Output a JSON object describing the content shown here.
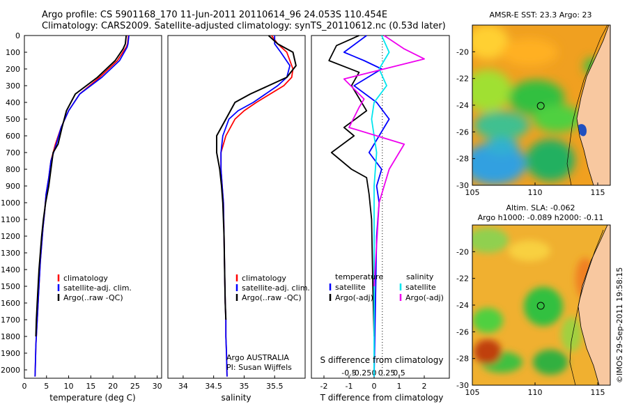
{
  "header": {
    "line1": "Argo profile: CS 5901168_170 11-Jun-2011 20110614_96 24.053S 110.454E",
    "line2": "Climatology: CARS2009. Satellite-adjusted climatology: synTS_20110612.nc (0.53d later)"
  },
  "colors": {
    "climatology": "#ff0000",
    "satellite": "#0000ff",
    "argo": "#000000",
    "sat_salinity": "#00e5ee",
    "argo_salinity_diff": "#ee00ee",
    "land": "#f8c8a0"
  },
  "chart_data": [
    {
      "type": "line",
      "id": "temperature",
      "xlabel": "temperature (deg C)",
      "ylabel": "",
      "xlim": [
        0,
        31
      ],
      "ylim": [
        2050,
        0
      ],
      "xticks": [
        0,
        5,
        10,
        15,
        20,
        25,
        30
      ],
      "yticks": [
        0,
        100,
        200,
        300,
        400,
        500,
        600,
        700,
        800,
        900,
        1000,
        1100,
        1200,
        1300,
        1400,
        1500,
        1600,
        1700,
        1800,
        1900,
        2000
      ],
      "legend": [
        "climatology",
        "satellite-adj. clim.",
        "Argo(..raw -QC)"
      ],
      "series": [
        {
          "name": "climatology",
          "x": [
            23.5,
            23.3,
            23.0,
            21.0,
            17.0,
            12.5,
            10.0,
            8.3,
            7.0,
            6.0,
            5.5,
            4.9,
            4.6,
            4.2,
            3.9,
            3.6,
            3.4,
            3.2,
            3.0,
            2.8,
            2.6,
            2.5,
            2.4
          ],
          "y": [
            0,
            50,
            70,
            150,
            250,
            350,
            450,
            550,
            650,
            750,
            850,
            950,
            1050,
            1150,
            1250,
            1350,
            1450,
            1550,
            1650,
            1750,
            1850,
            1950,
            2040
          ]
        },
        {
          "name": "satellite-adj. clim.",
          "x": [
            23.6,
            23.4,
            23.2,
            21.5,
            17.5,
            12.5,
            10.0,
            8.3,
            7.2,
            6.0,
            5.5,
            4.9,
            4.6,
            4.2,
            3.9,
            3.6,
            3.4,
            3.2,
            3.0,
            2.8,
            2.6,
            2.5,
            2.4
          ],
          "y": [
            0,
            50,
            70,
            150,
            250,
            350,
            450,
            550,
            650,
            750,
            850,
            950,
            1050,
            1150,
            1250,
            1350,
            1450,
            1550,
            1650,
            1750,
            1850,
            1950,
            2040
          ]
        },
        {
          "name": "Argo(..raw -QC)",
          "x": [
            23.0,
            22.8,
            22.3,
            20.5,
            16.5,
            11.5,
            9.5,
            8.5,
            7.6,
            6.5,
            6.0,
            5.5,
            4.8,
            4.3,
            3.9,
            3.6,
            3.3,
            3.1,
            2.9,
            2.7,
            2.6
          ],
          "y": [
            0,
            50,
            80,
            150,
            250,
            350,
            450,
            550,
            650,
            700,
            800,
            900,
            1000,
            1100,
            1200,
            1300,
            1400,
            1500,
            1600,
            1700,
            1800
          ]
        }
      ]
    },
    {
      "type": "line",
      "id": "salinity",
      "xlabel": "salinity",
      "ylabel": "",
      "xlim": [
        33.75,
        36.0
      ],
      "ylim": [
        2050,
        0
      ],
      "xticks": [
        34,
        34.5,
        35,
        35.5
      ],
      "xticklabels": [
        "34",
        "34.5",
        "35",
        "35.5"
      ],
      "legend": [
        "climatology",
        "satellite-adj. clim.",
        "Argo(..raw -QC)"
      ],
      "annotation": [
        "Argo AUSTRALIA",
        "PI: Susan Wijffels"
      ],
      "series": [
        {
          "name": "climatology",
          "x": [
            35.45,
            35.55,
            35.7,
            35.8,
            35.78,
            35.65,
            35.2,
            35.0,
            34.85,
            34.7,
            34.62,
            34.62,
            34.64,
            34.66,
            34.67,
            34.68,
            34.69,
            34.7,
            34.7,
            34.71,
            34.72
          ],
          "y": [
            0,
            50,
            100,
            200,
            250,
            300,
            400,
            450,
            500,
            600,
            700,
            800,
            900,
            1000,
            1200,
            1400,
            1600,
            1700,
            1800,
            1900,
            2040
          ]
        },
        {
          "name": "satellite-adj. clim.",
          "x": [
            35.5,
            35.5,
            35.6,
            35.75,
            35.7,
            35.55,
            35.15,
            34.9,
            34.75,
            34.65,
            34.62,
            34.62,
            34.64,
            34.66,
            34.67,
            34.68,
            34.69,
            34.7,
            34.7,
            34.71,
            34.72
          ],
          "y": [
            0,
            50,
            100,
            180,
            250,
            300,
            400,
            450,
            500,
            600,
            700,
            800,
            900,
            1000,
            1200,
            1400,
            1600,
            1700,
            1800,
            1900,
            2040
          ]
        },
        {
          "name": "Argo(..raw -QC)",
          "x": [
            35.4,
            35.55,
            35.8,
            35.85,
            35.7,
            35.4,
            35.1,
            34.85,
            34.7,
            34.55,
            34.55,
            34.6,
            34.63,
            34.65,
            34.67,
            34.68,
            34.69,
            34.7
          ],
          "y": [
            0,
            50,
            100,
            180,
            250,
            300,
            350,
            400,
            500,
            600,
            700,
            800,
            900,
            1000,
            1200,
            1400,
            1600,
            1700
          ]
        }
      ]
    },
    {
      "type": "line",
      "id": "differences",
      "xlabel": "T difference from climatology",
      "xlabel_top": "S difference from climatology",
      "xlim": [
        -2.5,
        3.0
      ],
      "ylim": [
        2050,
        0
      ],
      "xticks": [
        -2,
        -1,
        0,
        1,
        2
      ],
      "sticks": [
        -0.5,
        -0.25,
        0,
        0.25,
        0.5
      ],
      "sticklabels": [
        "-0.5",
        "-0.25",
        "0",
        "0.25",
        "0.5"
      ],
      "legend_groups": [
        {
          "title": "temperature",
          "items": [
            "satellite",
            "Argo(-adj)"
          ]
        },
        {
          "title": "salinity",
          "items": [
            "satellite",
            "Argo(-adj)"
          ]
        }
      ],
      "series": [
        {
          "name": "satellite",
          "group": "temperature",
          "x": [
            -0.3,
            -1.2,
            -0.4,
            0.3,
            -0.8,
            0.1,
            0.6,
            0.2,
            -0.2,
            0.3,
            0.1,
            0.2,
            0.1,
            0.0
          ],
          "y": [
            0,
            100,
            150,
            200,
            300,
            400,
            500,
            600,
            700,
            800,
            900,
            1000,
            1200,
            2040
          ]
        },
        {
          "name": "Argo(-adj)",
          "group": "temperature",
          "x": [
            -0.6,
            -1.5,
            -1.8,
            -0.6,
            -0.9,
            -0.3,
            -1.2,
            -0.8,
            -1.7,
            -0.9,
            -0.3,
            -0.2,
            -0.1,
            -0.05,
            0.0
          ],
          "y": [
            0,
            60,
            150,
            220,
            300,
            450,
            550,
            600,
            700,
            800,
            850,
            950,
            1100,
            1500,
            1800
          ]
        },
        {
          "name": "satellite",
          "group": "salinity",
          "x": [
            0.15,
            0.3,
            0.1,
            0.25,
            0.0,
            -0.05,
            0.05,
            0.0,
            0.0
          ],
          "y": [
            0,
            100,
            200,
            300,
            400,
            500,
            700,
            900,
            2040
          ]
        },
        {
          "name": "Argo(-adj)",
          "group": "salinity",
          "x": [
            0.2,
            0.6,
            1.0,
            -0.6,
            -0.2,
            -0.3,
            -0.5,
            0.6,
            0.3,
            0.1,
            0.0
          ],
          "y": [
            0,
            80,
            140,
            260,
            380,
            430,
            550,
            650,
            800,
            1000,
            1500
          ]
        }
      ]
    },
    {
      "type": "heatmap",
      "id": "sst_map",
      "title": "AMSR-E SST: 23.3  Argo: 23",
      "xlim": [
        105,
        116
      ],
      "ylim": [
        -30,
        -18
      ],
      "xticks": [
        105,
        110,
        115
      ],
      "yticks": [
        -20,
        -22,
        -24,
        -26,
        -28,
        -30
      ],
      "marker": {
        "lon": 110.454,
        "lat": -24.053
      }
    },
    {
      "type": "heatmap",
      "id": "sla_map",
      "title": "Altim. SLA: -0.062",
      "subtitle": "Argo h1000: -0.089  h2000: -0.11",
      "xlim": [
        105,
        116
      ],
      "ylim": [
        -30,
        -18
      ],
      "xticks": [
        105,
        110,
        115
      ],
      "yticks": [
        -20,
        -22,
        -24,
        -26,
        -28,
        -30
      ],
      "marker": {
        "lon": 110.454,
        "lat": -24.053
      }
    }
  ],
  "stamp": "©IMOS 29-Sep-2011 19:58:15"
}
